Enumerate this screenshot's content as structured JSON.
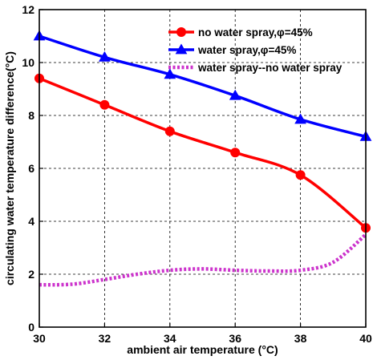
{
  "chart_data": {
    "type": "line",
    "title": "",
    "xlabel": "ambient air temperature (°C)",
    "ylabel": "circulating water temperature difference(°C)",
    "xlim": [
      30,
      40
    ],
    "ylim": [
      0,
      12
    ],
    "xticks": [
      30,
      32,
      34,
      36,
      38,
      40
    ],
    "yticks": [
      0,
      2,
      4,
      6,
      8,
      10,
      12
    ],
    "grid": "dashed",
    "legend_position": "top-right",
    "series": [
      {
        "name": "no water spray,φ=45%",
        "color": "#ff0000",
        "line_style": "solid",
        "marker": "circle",
        "x": [
          30,
          32,
          34,
          36,
          38,
          40
        ],
        "y": [
          9.4,
          8.4,
          7.4,
          6.6,
          5.75,
          3.75
        ]
      },
      {
        "name": "water spray,φ=45%",
        "color": "#0000ff",
        "line_style": "solid",
        "marker": "triangle",
        "x": [
          30,
          32,
          34,
          36,
          38,
          40
        ],
        "y": [
          11.0,
          10.2,
          9.55,
          8.75,
          7.85,
          7.2
        ]
      },
      {
        "name": "water spray--no water spray",
        "color": "#cc33cc",
        "line_style": "dotted",
        "marker": "none",
        "x": [
          30,
          31,
          32,
          33,
          34,
          35,
          36,
          37,
          38,
          39,
          40
        ],
        "y": [
          1.6,
          1.62,
          1.8,
          2.0,
          2.15,
          2.2,
          2.15,
          2.12,
          2.15,
          2.45,
          3.5
        ]
      }
    ]
  }
}
